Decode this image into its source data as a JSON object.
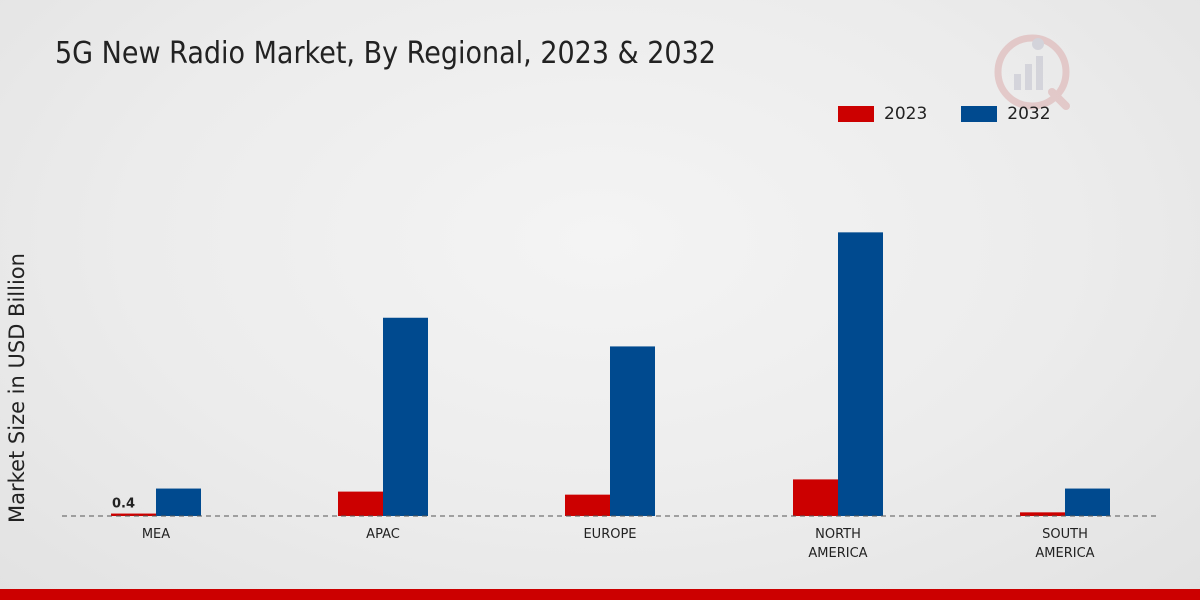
{
  "header": {
    "title": "5G New Radio Market, By Regional, 2023 & 2032"
  },
  "legend": {
    "items": [
      {
        "label": "2023",
        "color": "#cc0000"
      },
      {
        "label": "2032",
        "color": "#004a8f"
      }
    ]
  },
  "chart_data": {
    "type": "bar",
    "title": "5G New Radio Market, By Regional, 2023 & 2032",
    "xlabel": "",
    "ylabel": "Market Size in USD Billion",
    "categories": [
      [
        "MEA"
      ],
      [
        "APAC"
      ],
      [
        "EUROPE"
      ],
      [
        "NORTH",
        "AMERICA"
      ],
      [
        "SOUTH",
        "AMERICA"
      ]
    ],
    "series": [
      {
        "name": "2023",
        "color": "#cc0000",
        "values": [
          0.4,
          4.0,
          3.5,
          6.0,
          0.6
        ]
      },
      {
        "name": "2032",
        "color": "#004a8f",
        "values": [
          4.5,
          32.5,
          27.8,
          46.5,
          4.5
        ]
      }
    ],
    "data_labels": [
      {
        "series": 0,
        "category": 0,
        "text": "0.4"
      }
    ],
    "ylim": [
      0,
      60
    ],
    "grid": false,
    "legend_position": "top-right"
  }
}
